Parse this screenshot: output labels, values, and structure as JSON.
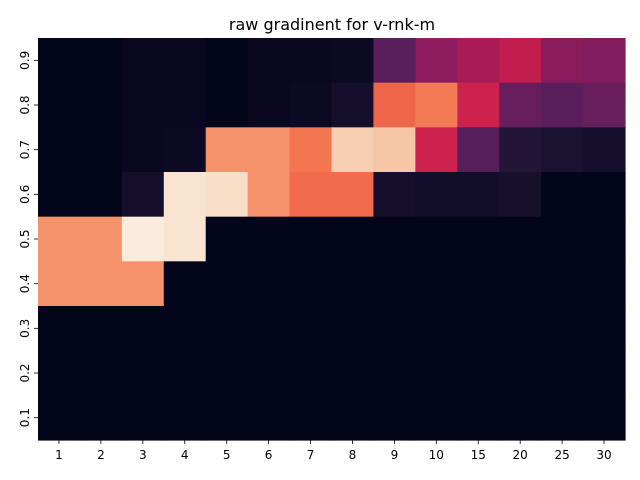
{
  "chart_data": {
    "type": "heatmap",
    "title": "raw gradinent for v-rnk-m",
    "xlabel": "",
    "ylabel": "",
    "x_categories": [
      "1",
      "2",
      "3",
      "4",
      "5",
      "6",
      "7",
      "8",
      "9",
      "10",
      "15",
      "20",
      "25",
      "30"
    ],
    "y_categories": [
      "0.9",
      "0.8",
      "0.7",
      "0.6",
      "0.5",
      "0.4",
      "0.3",
      "0.2",
      "0.1"
    ],
    "values": [
      [
        0.0,
        0.0,
        0.02,
        0.02,
        0.0,
        0.02,
        0.02,
        0.03,
        0.25,
        0.38,
        0.45,
        0.52,
        0.37,
        0.35
      ],
      [
        0.0,
        0.0,
        0.02,
        0.02,
        0.0,
        0.02,
        0.03,
        0.06,
        0.72,
        0.76,
        0.55,
        0.28,
        0.25,
        0.28
      ],
      [
        0.0,
        0.0,
        0.02,
        0.03,
        0.8,
        0.8,
        0.75,
        0.92,
        0.9,
        0.55,
        0.24,
        0.1,
        0.08,
        0.06
      ],
      [
        0.0,
        0.0,
        0.06,
        0.98,
        0.96,
        0.8,
        0.73,
        0.73,
        0.06,
        0.05,
        0.05,
        0.07,
        0.0,
        0.0
      ],
      [
        0.8,
        0.8,
        1.0,
        0.98,
        0.0,
        0.0,
        0.0,
        0.0,
        0.0,
        0.0,
        0.0,
        0.0,
        0.0,
        0.0
      ],
      [
        0.8,
        0.8,
        0.8,
        0.0,
        0.0,
        0.0,
        0.0,
        0.0,
        0.0,
        0.0,
        0.0,
        0.0,
        0.0,
        0.0
      ],
      [
        0.0,
        0.0,
        0.0,
        0.0,
        0.0,
        0.0,
        0.0,
        0.0,
        0.0,
        0.0,
        0.0,
        0.0,
        0.0,
        0.0
      ],
      [
        0.0,
        0.0,
        0.0,
        0.0,
        0.0,
        0.0,
        0.0,
        0.0,
        0.0,
        0.0,
        0.0,
        0.0,
        0.0,
        0.0
      ],
      [
        0.0,
        0.0,
        0.0,
        0.0,
        0.0,
        0.0,
        0.0,
        0.0,
        0.0,
        0.0,
        0.0,
        0.0,
        0.0,
        0.0
      ]
    ],
    "colormap": "rocket",
    "colormap_stops": [
      "#03051a",
      "#1c1331",
      "#3b1d4f",
      "#5a1e5c",
      "#7a1d5f",
      "#9b1b5b",
      "#bb1a51",
      "#d9284a",
      "#ec4a3d",
      "#f37651",
      "#f6a47c",
      "#f6cdb0",
      "#faebdd"
    ],
    "colorbar": false,
    "grid": false
  }
}
